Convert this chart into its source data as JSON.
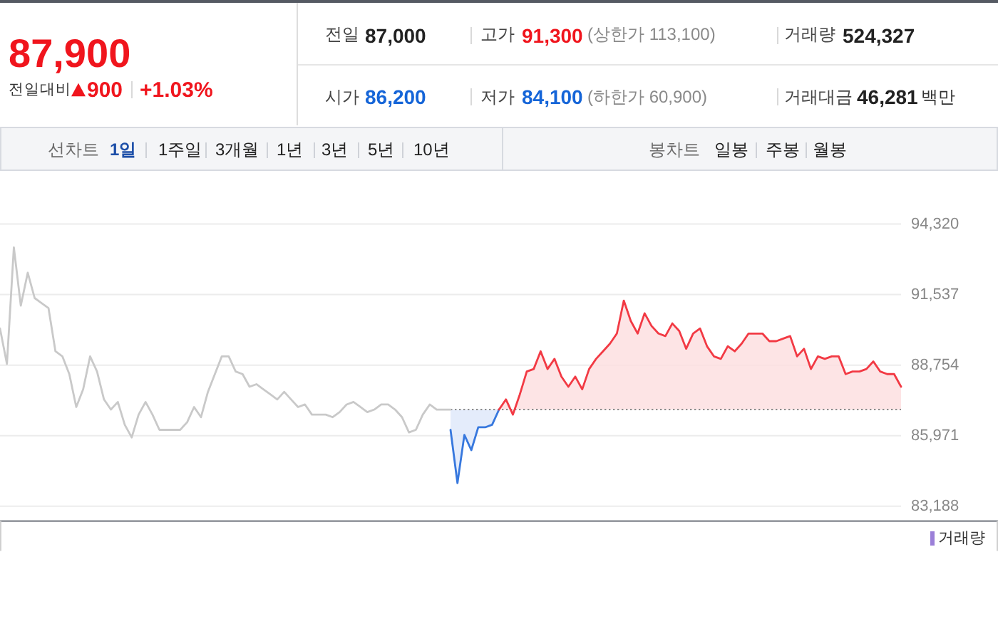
{
  "chart_data": [
    {
      "type": "other",
      "annotations": [
        "87,900",
        "전일대비",
        "900",
        "+1.03%",
        "전일",
        "87,000",
        "고가",
        "91,300",
        "(상한가 113,100)",
        "거래량",
        "524,327",
        "시가",
        "86,200",
        "저가",
        "84,100",
        "(하한가 60,900)",
        "거래대금",
        "46,281",
        "백만"
      ]
    },
    {
      "type": "other",
      "annotations": [
        "선차트",
        "1일",
        "1주일",
        "3개월",
        "1년",
        "3년",
        "5년",
        "10년",
        "봉차트",
        "일봉",
        "주봉",
        "월봉"
      ]
    },
    {
      "type": "line",
      "categories": [
        null,
        null,
        null,
        null,
        null,
        null,
        null,
        null,
        null,
        null,
        null,
        null,
        null,
        null,
        null,
        null,
        null,
        null,
        null,
        null,
        null,
        null,
        null,
        null,
        null,
        null,
        null,
        null,
        null,
        null,
        null,
        null,
        null,
        null,
        null,
        null,
        null,
        null,
        null,
        null,
        null,
        null,
        null,
        null,
        null,
        null,
        null,
        null,
        null,
        null,
        null,
        null,
        null,
        null,
        null,
        null,
        null,
        null,
        null,
        null,
        null,
        null,
        null,
        null,
        null,
        null,
        null,
        null,
        null,
        null,
        null,
        null,
        null,
        null,
        null,
        null,
        null,
        null,
        null,
        null,
        null,
        null,
        null,
        null,
        null,
        null,
        null,
        null,
        null,
        null,
        null,
        null,
        null,
        null,
        null,
        null,
        null,
        null,
        null,
        null,
        null,
        null,
        null,
        null,
        null,
        null,
        null,
        null,
        null,
        null,
        null,
        null,
        null,
        null,
        null,
        null,
        null,
        null,
        null,
        null,
        null,
        null,
        null,
        null,
        null,
        null,
        null,
        null,
        null,
        null,
        null
      ],
      "ylim": [
        82600,
        94320
      ],
      "yticks": [
        {
          "value": 83188,
          "label": "83,188"
        },
        {
          "value": 85971,
          "label": "85,971"
        },
        {
          "value": 88754,
          "label": "88,754"
        },
        {
          "value": 91537,
          "label": "91,537"
        },
        {
          "value": 94320,
          "label": "94,320"
        }
      ],
      "grid": "y",
      "ref_lines": [
        {
          "axis": "y",
          "value": 87000,
          "color": "#8c8c8c",
          "line_style": "dotted"
        }
      ],
      "annotations": [
        "거래량"
      ],
      "series": [
        {
          "type": "line",
          "color": "#c9c9c9",
          "values": [
            90200,
            88800,
            93400,
            91100,
            92400,
            91400,
            91200,
            91000,
            89300,
            89100,
            88400,
            87100,
            87800,
            89100,
            88500,
            87400,
            87000,
            87300,
            86400,
            85900,
            86800,
            87300,
            86800,
            86200,
            86200,
            86200,
            86200,
            86500,
            87100,
            86700,
            87700,
            88400,
            89100,
            89100,
            88500,
            88400,
            87900,
            88000,
            87800,
            87600,
            87400,
            87700,
            87400,
            87100,
            87200,
            86800,
            86800,
            86800,
            86700,
            86900,
            87200,
            87300,
            87100,
            86900,
            87000,
            87200,
            87200,
            87000,
            86700,
            86100,
            86200,
            86800,
            87200,
            87000,
            87000,
            87000,
            null,
            null,
            null,
            null,
            null,
            null,
            null,
            null,
            null,
            null,
            null,
            null,
            null,
            null,
            null,
            null,
            null,
            null,
            null,
            null,
            null,
            null,
            null,
            null,
            null,
            null,
            null,
            null,
            null,
            null,
            null,
            null,
            null,
            null,
            null,
            null,
            null,
            null,
            null,
            null,
            null,
            null,
            null,
            null,
            null,
            null,
            null,
            null,
            null,
            null,
            null,
            null,
            null,
            null,
            null,
            null,
            null,
            null,
            null,
            null,
            null,
            null,
            null,
            null,
            null
          ]
        },
        {
          "type": "line",
          "color": "#3778de",
          "values": [
            null,
            null,
            null,
            null,
            null,
            null,
            null,
            null,
            null,
            null,
            null,
            null,
            null,
            null,
            null,
            null,
            null,
            null,
            null,
            null,
            null,
            null,
            null,
            null,
            null,
            null,
            null,
            null,
            null,
            null,
            null,
            null,
            null,
            null,
            null,
            null,
            null,
            null,
            null,
            null,
            null,
            null,
            null,
            null,
            null,
            null,
            null,
            null,
            null,
            null,
            null,
            null,
            null,
            null,
            null,
            null,
            null,
            null,
            null,
            null,
            null,
            null,
            null,
            null,
            null,
            86200,
            84100,
            86000,
            85400,
            86300,
            86300,
            86400,
            87000,
            null,
            null,
            null,
            null,
            null,
            null,
            null,
            null,
            null,
            null,
            null,
            null,
            null,
            null,
            null,
            null,
            null,
            null,
            null,
            null,
            null,
            null,
            null,
            null,
            null,
            null,
            null,
            null,
            null,
            null,
            null,
            null,
            null,
            null,
            null,
            null,
            null,
            null,
            null,
            null,
            null,
            null,
            null,
            null,
            null,
            null,
            null,
            null,
            null,
            null,
            null,
            null,
            null,
            null,
            null,
            null,
            null,
            null
          ],
          "lower": [
            null,
            null,
            null,
            null,
            null,
            null,
            null,
            null,
            null,
            null,
            null,
            null,
            null,
            null,
            null,
            null,
            null,
            null,
            null,
            null,
            null,
            null,
            null,
            null,
            null,
            null,
            null,
            null,
            null,
            null,
            null,
            null,
            null,
            null,
            null,
            null,
            null,
            null,
            null,
            null,
            null,
            null,
            null,
            null,
            null,
            null,
            null,
            null,
            null,
            null,
            null,
            null,
            null,
            null,
            null,
            null,
            null,
            null,
            null,
            null,
            null,
            null,
            null,
            null,
            null,
            86200,
            84100,
            86000,
            85400,
            86300,
            86300,
            86400,
            87000,
            null,
            null,
            null,
            null,
            null,
            null,
            null,
            null,
            null,
            null,
            null,
            null,
            null,
            null,
            null,
            null,
            null,
            null,
            null,
            null,
            null,
            null,
            null,
            null,
            null,
            null,
            null,
            null,
            null,
            null,
            null,
            null,
            null,
            null,
            null,
            null,
            null,
            null,
            null,
            null,
            null,
            null,
            null,
            null,
            null,
            null,
            null,
            null,
            null,
            null,
            null,
            null,
            null,
            null,
            null,
            null,
            null,
            null
          ],
          "upper": [
            null,
            null,
            null,
            null,
            null,
            null,
            null,
            null,
            null,
            null,
            null,
            null,
            null,
            null,
            null,
            null,
            null,
            null,
            null,
            null,
            null,
            null,
            null,
            null,
            null,
            null,
            null,
            null,
            null,
            null,
            null,
            null,
            null,
            null,
            null,
            null,
            null,
            null,
            null,
            null,
            null,
            null,
            null,
            null,
            null,
            null,
            null,
            null,
            null,
            null,
            null,
            null,
            null,
            null,
            null,
            null,
            null,
            null,
            null,
            null,
            null,
            null,
            null,
            null,
            null,
            87000,
            87000,
            87000,
            87000,
            87000,
            87000,
            87000,
            87000,
            null,
            null,
            null,
            null,
            null,
            null,
            null,
            null,
            null,
            null,
            null,
            null,
            null,
            null,
            null,
            null,
            null,
            null,
            null,
            null,
            null,
            null,
            null,
            null,
            null,
            null,
            null,
            null,
            null,
            null,
            null,
            null,
            null,
            null,
            null,
            null,
            null,
            null,
            null,
            null,
            null,
            null,
            null,
            null,
            null,
            null,
            null,
            null,
            null,
            null,
            null,
            null,
            null,
            null,
            null,
            null,
            null,
            null
          ]
        },
        {
          "type": "line",
          "color": "#f23a44",
          "values": [
            null,
            null,
            null,
            null,
            null,
            null,
            null,
            null,
            null,
            null,
            null,
            null,
            null,
            null,
            null,
            null,
            null,
            null,
            null,
            null,
            null,
            null,
            null,
            null,
            null,
            null,
            null,
            null,
            null,
            null,
            null,
            null,
            null,
            null,
            null,
            null,
            null,
            null,
            null,
            null,
            null,
            null,
            null,
            null,
            null,
            null,
            null,
            null,
            null,
            null,
            null,
            null,
            null,
            null,
            null,
            null,
            null,
            null,
            null,
            null,
            null,
            null,
            null,
            null,
            null,
            null,
            null,
            null,
            null,
            null,
            null,
            null,
            87000,
            87400,
            86800,
            87600,
            88500,
            88600,
            89300,
            88600,
            89000,
            88300,
            87900,
            88300,
            87800,
            88600,
            89000,
            89300,
            89600,
            90000,
            91300,
            90500,
            90000,
            90800,
            90300,
            90000,
            89900,
            90400,
            90100,
            89400,
            90000,
            90200,
            89500,
            89100,
            89000,
            89500,
            89300,
            89600,
            90000,
            90000,
            90000,
            89700,
            89700,
            89800,
            89900,
            89100,
            89400,
            88600,
            89100,
            89000,
            89100,
            89100,
            88400,
            88500,
            88500,
            88600,
            88900,
            88500,
            88400,
            88400,
            87900
          ],
          "lower": [
            null,
            null,
            null,
            null,
            null,
            null,
            null,
            null,
            null,
            null,
            null,
            null,
            null,
            null,
            null,
            null,
            null,
            null,
            null,
            null,
            null,
            null,
            null,
            null,
            null,
            null,
            null,
            null,
            null,
            null,
            null,
            null,
            null,
            null,
            null,
            null,
            null,
            null,
            null,
            null,
            null,
            null,
            null,
            null,
            null,
            null,
            null,
            null,
            null,
            null,
            null,
            null,
            null,
            null,
            null,
            null,
            null,
            null,
            null,
            null,
            null,
            null,
            null,
            null,
            null,
            null,
            null,
            null,
            null,
            null,
            null,
            null,
            87000,
            87000,
            87000,
            87000,
            87000,
            87000,
            87000,
            87000,
            87000,
            87000,
            87000,
            87000,
            87000,
            87000,
            87000,
            87000,
            87000,
            87000,
            87000,
            87000,
            87000,
            87000,
            87000,
            87000,
            87000,
            87000,
            87000,
            87000,
            87000,
            87000,
            87000,
            87000,
            87000,
            87000,
            87000,
            87000,
            87000,
            87000,
            87000,
            87000,
            87000,
            87000,
            87000,
            87000,
            87000,
            87000,
            87000,
            87000,
            87000,
            87000,
            87000,
            87000,
            87000,
            87000,
            87000,
            87000,
            87000,
            87000,
            87000
          ],
          "upper": [
            null,
            null,
            null,
            null,
            null,
            null,
            null,
            null,
            null,
            null,
            null,
            null,
            null,
            null,
            null,
            null,
            null,
            null,
            null,
            null,
            null,
            null,
            null,
            null,
            null,
            null,
            null,
            null,
            null,
            null,
            null,
            null,
            null,
            null,
            null,
            null,
            null,
            null,
            null,
            null,
            null,
            null,
            null,
            null,
            null,
            null,
            null,
            null,
            null,
            null,
            null,
            null,
            null,
            null,
            null,
            null,
            null,
            null,
            null,
            null,
            null,
            null,
            null,
            null,
            null,
            null,
            null,
            null,
            null,
            null,
            null,
            null,
            87000,
            87400,
            86800,
            87600,
            88500,
            88600,
            89300,
            88600,
            89000,
            88300,
            87900,
            88300,
            87800,
            88600,
            89000,
            89300,
            89600,
            90000,
            91300,
            90500,
            90000,
            90800,
            90300,
            90000,
            89900,
            90400,
            90100,
            89400,
            90000,
            90200,
            89500,
            89100,
            89000,
            89500,
            89300,
            89600,
            90000,
            90000,
            90000,
            89700,
            89700,
            89800,
            89900,
            89100,
            89400,
            88600,
            89100,
            89000,
            89100,
            89100,
            88400,
            88500,
            88500,
            88600,
            88900,
            88500,
            88400,
            88400,
            87900
          ]
        }
      ]
    }
  ]
}
